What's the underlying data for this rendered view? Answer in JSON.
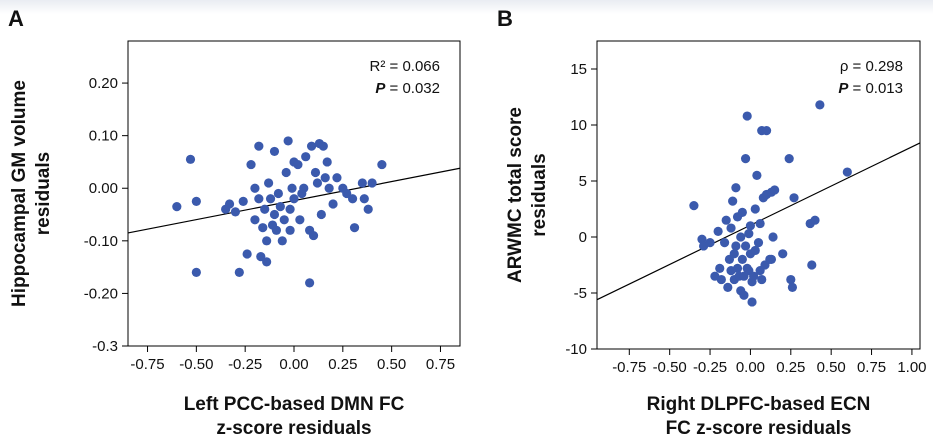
{
  "chart_data": [
    {
      "type": "scatter",
      "panel_label": "A",
      "xlabel_lines": [
        "Left PCC-based DMN FC",
        "z-score residuals"
      ],
      "ylabel_lines": [
        "Hippocampal GM volume",
        "residuals"
      ],
      "xlim": [
        -0.85,
        0.85
      ],
      "ylim": [
        -0.3,
        0.28
      ],
      "xticks": [
        -0.75,
        -0.5,
        -0.25,
        0.0,
        0.25,
        0.5,
        0.75
      ],
      "xtick_labels": [
        "-0.75",
        "-0.50",
        "-0.25",
        "0.00",
        "0.25",
        "0.50",
        "0.75"
      ],
      "yticks": [
        -0.3,
        -0.2,
        -0.1,
        0.0,
        0.1,
        0.2
      ],
      "ytick_labels": [
        "-0.3",
        "-0.20",
        "-0.10",
        "0.00",
        "0.10",
        "0.20"
      ],
      "stats": [
        {
          "label": "R² = ",
          "value": "0.066",
          "italic_bold": false
        },
        {
          "label": "P",
          "value": " = 0.032",
          "italic_bold": true
        }
      ],
      "fit_line": {
        "x": [
          -0.85,
          0.85
        ],
        "y": [
          -0.085,
          0.038
        ]
      },
      "point_color": "#3b5aad",
      "points": [
        [
          -0.6,
          -0.035
        ],
        [
          -0.53,
          0.055
        ],
        [
          -0.5,
          -0.025
        ],
        [
          -0.5,
          -0.16
        ],
        [
          -0.35,
          -0.04
        ],
        [
          -0.33,
          -0.03
        ],
        [
          -0.3,
          -0.045
        ],
        [
          -0.28,
          -0.16
        ],
        [
          -0.26,
          -0.025
        ],
        [
          -0.24,
          -0.125
        ],
        [
          -0.22,
          0.045
        ],
        [
          -0.2,
          0.0
        ],
        [
          -0.2,
          -0.06
        ],
        [
          -0.18,
          -0.02
        ],
        [
          -0.18,
          0.08
        ],
        [
          -0.17,
          -0.13
        ],
        [
          -0.16,
          -0.075
        ],
        [
          -0.15,
          -0.04
        ],
        [
          -0.14,
          -0.1
        ],
        [
          -0.14,
          -0.14
        ],
        [
          -0.13,
          0.01
        ],
        [
          -0.12,
          -0.02
        ],
        [
          -0.11,
          -0.07
        ],
        [
          -0.1,
          0.07
        ],
        [
          -0.1,
          -0.05
        ],
        [
          -0.09,
          -0.08
        ],
        [
          -0.08,
          -0.01
        ],
        [
          -0.07,
          -0.035
        ],
        [
          -0.06,
          -0.1
        ],
        [
          -0.05,
          -0.06
        ],
        [
          -0.04,
          0.03
        ],
        [
          -0.03,
          0.09
        ],
        [
          -0.02,
          -0.04
        ],
        [
          -0.02,
          -0.08
        ],
        [
          -0.01,
          0.0
        ],
        [
          0.0,
          0.05
        ],
        [
          0.0,
          -0.02
        ],
        [
          0.02,
          0.045
        ],
        [
          0.03,
          -0.06
        ],
        [
          0.04,
          -0.01
        ],
        [
          0.05,
          0.0
        ],
        [
          0.06,
          0.06
        ],
        [
          0.08,
          -0.08
        ],
        [
          0.08,
          -0.18
        ],
        [
          0.09,
          0.08
        ],
        [
          0.1,
          -0.09
        ],
        [
          0.11,
          0.03
        ],
        [
          0.12,
          0.01
        ],
        [
          0.13,
          0.085
        ],
        [
          0.14,
          -0.05
        ],
        [
          0.15,
          0.08
        ],
        [
          0.16,
          0.02
        ],
        [
          0.17,
          0.05
        ],
        [
          0.18,
          0.0
        ],
        [
          0.2,
          -0.03
        ],
        [
          0.22,
          0.02
        ],
        [
          0.25,
          0.0
        ],
        [
          0.27,
          -0.01
        ],
        [
          0.3,
          -0.02
        ],
        [
          0.31,
          -0.075
        ],
        [
          0.35,
          0.01
        ],
        [
          0.36,
          -0.02
        ],
        [
          0.38,
          -0.04
        ],
        [
          0.4,
          0.01
        ],
        [
          0.45,
          0.045
        ]
      ]
    },
    {
      "type": "scatter",
      "panel_label": "B",
      "xlabel_lines": [
        "Right DLPFC-based ECN",
        "FC z-score residuals"
      ],
      "ylabel_lines": [
        "ARWMC total score",
        "residuals"
      ],
      "xlim": [
        -0.95,
        1.05
      ],
      "ylim": [
        -10,
        17.5
      ],
      "xticks": [
        -0.75,
        -0.5,
        -0.25,
        0.0,
        0.25,
        0.5,
        0.75,
        1.0
      ],
      "xtick_labels": [
        "-0.75",
        "-0.50",
        "-0.25",
        "0.00",
        "0.25",
        "0.50",
        "0.75",
        "1.00"
      ],
      "yticks": [
        -10,
        -5,
        0,
        5,
        10,
        15
      ],
      "ytick_labels": [
        "-10",
        "-5",
        "0",
        "5",
        "10",
        "15"
      ],
      "stats": [
        {
          "label": "ρ = ",
          "value": "0.298",
          "italic_bold": false
        },
        {
          "label": "P",
          "value": " = 0.013",
          "italic_bold": true
        }
      ],
      "fit_line": {
        "x": [
          -0.95,
          1.05
        ],
        "y": [
          -5.6,
          8.4
        ]
      },
      "point_color": "#3b5aad",
      "points": [
        [
          -0.35,
          2.8
        ],
        [
          -0.3,
          -0.2
        ],
        [
          -0.29,
          -0.8
        ],
        [
          -0.25,
          -0.5
        ],
        [
          -0.22,
          -3.5
        ],
        [
          -0.2,
          0.5
        ],
        [
          -0.19,
          -2.8
        ],
        [
          -0.18,
          -3.8
        ],
        [
          -0.16,
          -0.5
        ],
        [
          -0.15,
          1.5
        ],
        [
          -0.14,
          -4.5
        ],
        [
          -0.13,
          -2.0
        ],
        [
          -0.12,
          -3.0
        ],
        [
          -0.12,
          0.8
        ],
        [
          -0.11,
          3.2
        ],
        [
          -0.1,
          -1.5
        ],
        [
          -0.1,
          -3.8
        ],
        [
          -0.09,
          -0.8
        ],
        [
          -0.09,
          4.4
        ],
        [
          -0.08,
          1.8
        ],
        [
          -0.08,
          -2.8
        ],
        [
          -0.07,
          -3.5
        ],
        [
          -0.06,
          -4.8
        ],
        [
          -0.06,
          0.0
        ],
        [
          -0.05,
          -2.0
        ],
        [
          -0.05,
          2.2
        ],
        [
          -0.04,
          -3.5
        ],
        [
          -0.04,
          -5.2
        ],
        [
          -0.03,
          -0.8
        ],
        [
          -0.03,
          7.0
        ],
        [
          -0.02,
          10.8
        ],
        [
          -0.02,
          -2.8
        ],
        [
          -0.01,
          -3.0
        ],
        [
          -0.01,
          0.3
        ],
        [
          0.0,
          -1.5
        ],
        [
          0.0,
          1.0
        ],
        [
          0.01,
          -4.0
        ],
        [
          0.01,
          -5.8
        ],
        [
          0.02,
          -3.5
        ],
        [
          0.03,
          2.5
        ],
        [
          0.03,
          -1.2
        ],
        [
          0.04,
          5.5
        ],
        [
          0.05,
          -0.5
        ],
        [
          0.06,
          1.2
        ],
        [
          0.06,
          -3.0
        ],
        [
          0.07,
          9.5
        ],
        [
          0.07,
          -3.8
        ],
        [
          0.08,
          3.5
        ],
        [
          0.09,
          -2.5
        ],
        [
          0.1,
          9.5
        ],
        [
          0.1,
          3.8
        ],
        [
          0.12,
          -2.0
        ],
        [
          0.13,
          -2.0
        ],
        [
          0.13,
          4.0
        ],
        [
          0.14,
          0.0
        ],
        [
          0.15,
          4.2
        ],
        [
          0.2,
          -1.5
        ],
        [
          0.24,
          7.0
        ],
        [
          0.25,
          -3.8
        ],
        [
          0.26,
          -4.5
        ],
        [
          0.27,
          3.5
        ],
        [
          0.37,
          1.2
        ],
        [
          0.38,
          -2.5
        ],
        [
          0.4,
          1.5
        ],
        [
          0.43,
          11.8
        ],
        [
          0.6,
          5.8
        ]
      ]
    }
  ]
}
